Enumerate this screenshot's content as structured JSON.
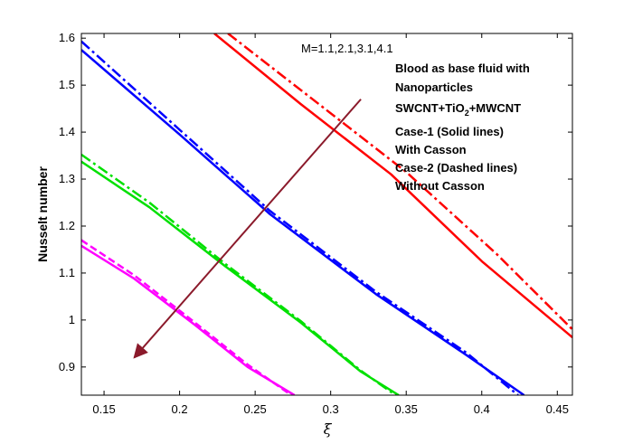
{
  "chart_data": {
    "type": "line",
    "xlabel": "ξ",
    "ylabel": "Nusselt number",
    "xlim": [
      0.135,
      0.46
    ],
    "ylim": [
      0.84,
      1.61
    ],
    "xticks": [
      0.15,
      0.2,
      0.25,
      0.3,
      0.35,
      0.4,
      0.45
    ],
    "xtick_labels": [
      "0.15",
      "0.2",
      "0.25",
      "0.3",
      "0.35",
      "0.4",
      "0.45"
    ],
    "yticks": [
      0.9,
      1.0,
      1.1,
      1.2,
      1.3,
      1.4,
      1.5,
      1.6
    ],
    "ytick_labels": [
      "0.9",
      "1",
      "1.1",
      "1.2",
      "1.3",
      "1.4",
      "1.5",
      "1.6"
    ],
    "grid": false,
    "annotations": {
      "m_values": "M=1.1,2.1,3.1,4.1",
      "line1": "Blood as base fluid with",
      "line2": "Nanoparticles",
      "line3_a": "SWCNT+TiO",
      "line3_sub": "2",
      "line3_b": "+MWCNT",
      "line4": "Case-1 (Solid lines)",
      "line5": "With Casson",
      "line6": "Case-2 (Dashed lines)",
      "line7": "Without Casson"
    },
    "arrow": {
      "from": [
        0.32,
        1.47
      ],
      "to": [
        0.17,
        0.92
      ],
      "color": "#8b1a2b"
    },
    "series": [
      {
        "color": "#ff0000",
        "style": "solid",
        "x": [
          0.223,
          0.28,
          0.34,
          0.4,
          0.46
        ],
        "y": [
          1.61,
          1.46,
          1.31,
          1.125,
          0.963
        ]
      },
      {
        "color": "#ff0000",
        "style": "dashdot",
        "x": [
          0.232,
          0.29,
          0.35,
          0.41,
          0.46
        ],
        "y": [
          1.61,
          1.465,
          1.315,
          1.14,
          0.98
        ]
      },
      {
        "color": "#0000ff",
        "style": "solid",
        "x": [
          0.135,
          0.2,
          0.26,
          0.33,
          0.39,
          0.428
        ],
        "y": [
          1.575,
          1.395,
          1.225,
          1.055,
          0.925,
          0.84
        ]
      },
      {
        "color": "#0000ff",
        "style": "dashdot",
        "x": [
          0.135,
          0.2,
          0.26,
          0.33,
          0.39,
          0.424
        ],
        "y": [
          1.593,
          1.405,
          1.232,
          1.06,
          0.93,
          0.84
        ]
      },
      {
        "color": "#00e000",
        "style": "solid",
        "x": [
          0.135,
          0.18,
          0.23,
          0.28,
          0.32,
          0.345
        ],
        "y": [
          1.337,
          1.24,
          1.115,
          0.995,
          0.89,
          0.84
        ]
      },
      {
        "color": "#00e000",
        "style": "dashdot",
        "x": [
          0.135,
          0.18,
          0.23,
          0.28,
          0.32,
          0.343
        ],
        "y": [
          1.352,
          1.25,
          1.12,
          0.998,
          0.892,
          0.84
        ]
      },
      {
        "color": "#ff00ff",
        "style": "solid",
        "x": [
          0.135,
          0.17,
          0.21,
          0.245,
          0.276
        ],
        "y": [
          1.158,
          1.088,
          0.99,
          0.9,
          0.84
        ]
      },
      {
        "color": "#ff00ff",
        "style": "dashed",
        "x": [
          0.135,
          0.17,
          0.21,
          0.245,
          0.274
        ],
        "y": [
          1.17,
          1.095,
          0.995,
          0.905,
          0.84
        ]
      }
    ]
  }
}
